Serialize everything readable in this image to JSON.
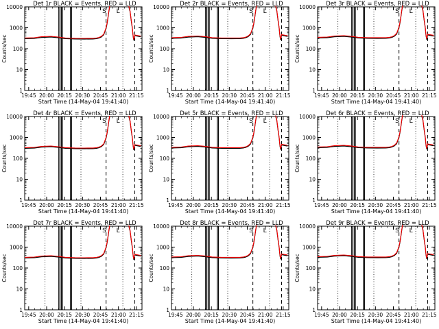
{
  "chart_data": [
    {
      "type": "line",
      "title": "Det 1r BLACK = Events, RED = LLD",
      "xlabel": "Start Time (14-May-04 19:41:40)",
      "ylabel": "Counts/sec",
      "yscale": "log",
      "ylim": [
        1,
        10000
      ],
      "xticks": [
        "19:45",
        "20:00",
        "20:15",
        "20:30",
        "20:45",
        "21:00",
        "21:15"
      ],
      "yticks": [
        "1",
        "10",
        "100",
        "1000",
        "10000"
      ],
      "annotations": [
        "S",
        "L"
      ]
    },
    {
      "type": "line",
      "title": "Det 2r BLACK = Events, RED = LLD",
      "xlabel": "Start Time (14-May-04 19:41:40)",
      "ylabel": "Counts/sec",
      "yscale": "log",
      "ylim": [
        1,
        10000
      ],
      "xticks": [
        "19:45",
        "20:00",
        "20:15",
        "20:30",
        "20:45",
        "21:00",
        "21:15"
      ],
      "yticks": [
        "1",
        "10",
        "100",
        "1000",
        "10000"
      ],
      "annotations": [
        "S",
        "L"
      ]
    },
    {
      "type": "line",
      "title": "Det 3r BLACK = Events, RED = LLD",
      "xlabel": "Start Time (14-May-04 19:41:40)",
      "ylabel": "Counts/sec",
      "yscale": "log",
      "ylim": [
        1,
        10000
      ],
      "xticks": [
        "19:45",
        "20:00",
        "20:15",
        "20:30",
        "20:45",
        "21:00",
        "21:15"
      ],
      "yticks": [
        "1",
        "10",
        "100",
        "1000",
        "10000"
      ],
      "annotations": [
        "S",
        "L"
      ]
    },
    {
      "type": "line",
      "title": "Det 4r BLACK = Events, RED = LLD",
      "xlabel": "Start Time (14-May-04 19:41:40)",
      "ylabel": "Counts/sec",
      "yscale": "log",
      "ylim": [
        1,
        10000
      ],
      "xticks": [
        "19:45",
        "20:00",
        "20:15",
        "20:30",
        "20:45",
        "21:00",
        "21:15"
      ],
      "yticks": [
        "1",
        "10",
        "100",
        "1000",
        "10000"
      ],
      "annotations": [
        "S",
        "L"
      ]
    },
    {
      "type": "line",
      "title": "Det 5r BLACK = Events, RED = LLD",
      "xlabel": "Start Time (14-May-04 19:41:40)",
      "ylabel": "Counts/sec",
      "yscale": "log",
      "ylim": [
        1,
        10000
      ],
      "xticks": [
        "19:45",
        "20:00",
        "20:15",
        "20:30",
        "20:45",
        "21:00",
        "21:15"
      ],
      "yticks": [
        "1",
        "10",
        "100",
        "1000",
        "10000"
      ],
      "annotations": [
        "S",
        "L"
      ]
    },
    {
      "type": "line",
      "title": "Det 6r BLACK = Events, RED = LLD",
      "xlabel": "Start Time (14-May-04 19:41:40)",
      "ylabel": "Counts/sec",
      "yscale": "log",
      "ylim": [
        1,
        10000
      ],
      "xticks": [
        "19:45",
        "20:00",
        "20:15",
        "20:30",
        "20:45",
        "21:00",
        "21:15"
      ],
      "yticks": [
        "1",
        "10",
        "100",
        "1000",
        "10000"
      ],
      "annotations": [
        "S",
        "L"
      ]
    },
    {
      "type": "line",
      "title": "Det 7r BLACK = Events, RED = LLD",
      "xlabel": "Start Time (14-May-04 19:41:40)",
      "ylabel": "Counts/sec",
      "yscale": "log",
      "ylim": [
        1,
        10000
      ],
      "xticks": [
        "19:45",
        "20:00",
        "20:15",
        "20:30",
        "20:45",
        "21:00",
        "21:15"
      ],
      "yticks": [
        "1",
        "10",
        "100",
        "1000",
        "10000"
      ],
      "annotations": [
        "S",
        "L"
      ]
    },
    {
      "type": "line",
      "title": "Det 8r BLACK = Events, RED = LLD",
      "xlabel": "Start Time (14-May-04 19:41:40)",
      "ylabel": "Counts/sec",
      "yscale": "log",
      "ylim": [
        1,
        10000
      ],
      "xticks": [
        "19:45",
        "20:00",
        "20:15",
        "20:30",
        "20:45",
        "21:00",
        "21:15"
      ],
      "yticks": [
        "1",
        "10",
        "100",
        "1000",
        "10000"
      ],
      "annotations": [
        "S",
        "L"
      ]
    },
    {
      "type": "line",
      "title": "Det 9r BLACK = Events, RED = LLD",
      "xlabel": "Start Time (14-May-04 19:41:40)",
      "ylabel": "Counts/sec",
      "yscale": "log",
      "ylim": [
        1,
        10000
      ],
      "xticks": [
        "19:45",
        "20:00",
        "20:15",
        "20:30",
        "20:45",
        "21:00",
        "21:15"
      ],
      "yticks": [
        "1",
        "10",
        "100",
        "1000",
        "10000"
      ],
      "annotations": [
        "S",
        "L"
      ]
    }
  ],
  "time_axis": {
    "minutes": [
      0,
      3.33,
      18.33,
      33.33,
      48.33,
      63.33,
      78.33,
      93.33
    ],
    "range": [
      0,
      98
    ]
  },
  "colors": {
    "events": "#000000",
    "lld": "#ff0000"
  },
  "profile": {
    "events": [
      [
        0,
        300
      ],
      [
        8,
        310
      ],
      [
        14,
        345
      ],
      [
        22,
        360
      ],
      [
        28,
        335
      ],
      [
        34,
        300
      ],
      [
        42,
        290
      ],
      [
        50,
        288
      ],
      [
        57,
        290
      ],
      [
        60,
        300
      ],
      [
        62,
        320
      ],
      [
        64,
        360
      ],
      [
        66,
        460
      ],
      [
        67,
        650
      ],
      [
        68,
        950
      ],
      [
        68.8,
        1500
      ],
      [
        69.5,
        2800
      ],
      [
        70.3,
        6000
      ],
      [
        71,
        10000
      ]
    ],
    "lld_offset": 1.08,
    "tail": [
      [
        87,
        10000
      ],
      [
        88,
        6000
      ],
      [
        89,
        2200
      ],
      [
        90,
        900
      ],
      [
        90.6,
        380
      ],
      [
        91.2,
        250
      ],
      [
        92,
        420
      ],
      [
        95,
        390
      ],
      [
        97,
        370
      ]
    ]
  },
  "markers": {
    "solid_pairs": [
      [
        28.5,
        29.5
      ],
      [
        30.6,
        31.6
      ],
      [
        38.2,
        39.2
      ]
    ],
    "dashed": [
      68,
      92
    ],
    "dotted": [
      17,
      47,
      82
    ],
    "annotation_times": [
      66.5,
      78
    ]
  }
}
